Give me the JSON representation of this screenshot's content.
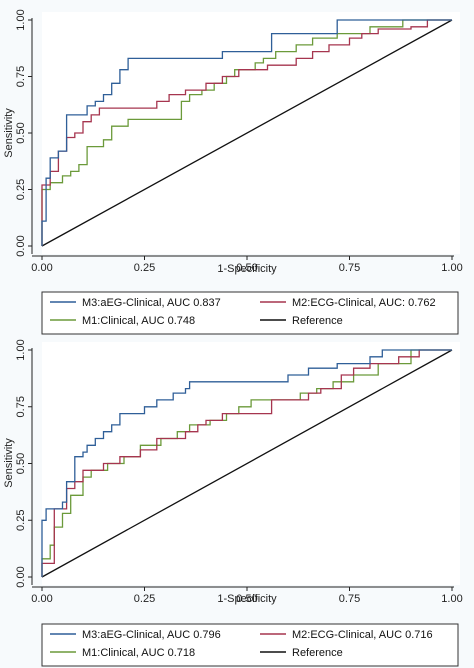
{
  "chart_data": [
    {
      "type": "line",
      "xlabel": "1-Specificity",
      "ylabel": "Sensitivity",
      "xlim": [
        0,
        1
      ],
      "ylim": [
        0,
        1
      ],
      "xticks": [
        "0.00",
        "0.25",
        "0.50",
        "0.75",
        "1.00"
      ],
      "yticks": [
        "0.00",
        "0.25",
        "0.50",
        "0.75",
        "1.00"
      ],
      "grid": false,
      "legend_position": "bottom",
      "series": [
        {
          "name": "M3:aEG-Clinical, AUC 0.837",
          "color": "#2f5f98",
          "x": [
            0,
            0,
            0.01,
            0.01,
            0.02,
            0.02,
            0.04,
            0.04,
            0.06,
            0.06,
            0.11,
            0.11,
            0.13,
            0.13,
            0.15,
            0.15,
            0.17,
            0.17,
            0.19,
            0.19,
            0.21,
            0.21,
            0.23,
            0.23,
            0.26,
            0.26,
            0.44,
            0.44,
            0.51,
            0.51,
            0.56,
            0.56,
            0.72,
            0.72,
            1.0
          ],
          "y": [
            0,
            0.11,
            0.11,
            0.3,
            0.3,
            0.39,
            0.39,
            0.42,
            0.42,
            0.58,
            0.58,
            0.62,
            0.62,
            0.64,
            0.64,
            0.67,
            0.67,
            0.72,
            0.72,
            0.78,
            0.78,
            0.83,
            0.83,
            0.83,
            0.83,
            0.83,
            0.83,
            0.86,
            0.86,
            0.86,
            0.86,
            0.94,
            0.94,
            1.0,
            1.0
          ]
        },
        {
          "name": "M2:ECG-Clinical, AUC: 0.762",
          "color": "#a6354f",
          "x": [
            0,
            0,
            0.02,
            0.02,
            0.04,
            0.04,
            0.06,
            0.06,
            0.08,
            0.08,
            0.1,
            0.1,
            0.12,
            0.12,
            0.14,
            0.14,
            0.28,
            0.28,
            0.31,
            0.31,
            0.35,
            0.35,
            0.4,
            0.4,
            0.44,
            0.44,
            0.48,
            0.48,
            0.55,
            0.55,
            0.62,
            0.62,
            0.66,
            0.66,
            0.7,
            0.7,
            0.75,
            0.75,
            0.78,
            0.78,
            0.82,
            0.82,
            0.9,
            0.9,
            0.94,
            0.94,
            1.0
          ],
          "y": [
            0,
            0.27,
            0.27,
            0.33,
            0.33,
            0.42,
            0.42,
            0.48,
            0.48,
            0.5,
            0.5,
            0.55,
            0.55,
            0.58,
            0.58,
            0.61,
            0.61,
            0.64,
            0.64,
            0.67,
            0.67,
            0.69,
            0.69,
            0.72,
            0.72,
            0.75,
            0.75,
            0.78,
            0.78,
            0.8,
            0.8,
            0.83,
            0.83,
            0.86,
            0.86,
            0.89,
            0.89,
            0.92,
            0.92,
            0.94,
            0.94,
            0.96,
            0.96,
            0.97,
            0.97,
            1.0,
            1.0
          ]
        },
        {
          "name": "M1:Clinical, AUC 0.748",
          "color": "#6b9a3a",
          "x": [
            0,
            0,
            0.02,
            0.02,
            0.05,
            0.05,
            0.07,
            0.07,
            0.09,
            0.09,
            0.11,
            0.11,
            0.15,
            0.15,
            0.17,
            0.17,
            0.21,
            0.21,
            0.34,
            0.34,
            0.36,
            0.36,
            0.39,
            0.39,
            0.42,
            0.42,
            0.45,
            0.45,
            0.47,
            0.47,
            0.52,
            0.52,
            0.54,
            0.54,
            0.57,
            0.57,
            0.62,
            0.62,
            0.66,
            0.66,
            0.72,
            0.72,
            0.8,
            0.8,
            0.88,
            0.88,
            1.0
          ],
          "y": [
            0,
            0.25,
            0.25,
            0.28,
            0.28,
            0.31,
            0.31,
            0.33,
            0.33,
            0.36,
            0.36,
            0.44,
            0.44,
            0.47,
            0.47,
            0.53,
            0.53,
            0.56,
            0.56,
            0.64,
            0.64,
            0.67,
            0.67,
            0.69,
            0.69,
            0.72,
            0.72,
            0.75,
            0.75,
            0.78,
            0.78,
            0.81,
            0.81,
            0.83,
            0.83,
            0.86,
            0.86,
            0.89,
            0.89,
            0.92,
            0.92,
            0.94,
            0.94,
            0.97,
            0.97,
            1.0,
            1.0
          ]
        },
        {
          "name": "Reference",
          "color": "#111111",
          "x": [
            0,
            1
          ],
          "y": [
            0,
            1
          ]
        }
      ]
    },
    {
      "type": "line",
      "xlabel": "1-Specificity",
      "ylabel": "Sensitivity",
      "xlim": [
        0,
        1
      ],
      "ylim": [
        0,
        1
      ],
      "xticks": [
        "0.00",
        "0.25",
        "0.50",
        "0.75",
        "1.00"
      ],
      "yticks": [
        "0.00",
        "0.25",
        "0.50",
        "0.75",
        "1.00"
      ],
      "grid": false,
      "legend_position": "bottom",
      "series": [
        {
          "name": "M3:aEG-Clinical, AUC 0.796",
          "color": "#2f5f98",
          "x": [
            0,
            0,
            0.01,
            0.01,
            0.02,
            0.02,
            0.05,
            0.05,
            0.06,
            0.06,
            0.08,
            0.08,
            0.1,
            0.1,
            0.11,
            0.11,
            0.13,
            0.13,
            0.15,
            0.15,
            0.17,
            0.17,
            0.19,
            0.19,
            0.23,
            0.23,
            0.25,
            0.25,
            0.28,
            0.28,
            0.32,
            0.32,
            0.35,
            0.35,
            0.36,
            0.36,
            0.6,
            0.6,
            0.65,
            0.65,
            0.72,
            0.72,
            0.8,
            0.8,
            0.83,
            0.83,
            1.0
          ],
          "y": [
            0,
            0.25,
            0.25,
            0.3,
            0.3,
            0.3,
            0.3,
            0.33,
            0.33,
            0.42,
            0.42,
            0.53,
            0.53,
            0.55,
            0.55,
            0.58,
            0.58,
            0.61,
            0.61,
            0.64,
            0.64,
            0.67,
            0.67,
            0.72,
            0.72,
            0.72,
            0.72,
            0.75,
            0.75,
            0.78,
            0.78,
            0.81,
            0.81,
            0.83,
            0.83,
            0.86,
            0.86,
            0.89,
            0.89,
            0.92,
            0.92,
            0.94,
            0.94,
            0.97,
            0.97,
            1.0,
            1.0
          ]
        },
        {
          "name": "M2:ECG-Clinical, AUC 0.716",
          "color": "#a6354f",
          "x": [
            0,
            0,
            0.03,
            0.03,
            0.06,
            0.06,
            0.08,
            0.08,
            0.1,
            0.1,
            0.15,
            0.15,
            0.19,
            0.19,
            0.24,
            0.24,
            0.28,
            0.28,
            0.35,
            0.35,
            0.38,
            0.38,
            0.4,
            0.4,
            0.44,
            0.44,
            0.56,
            0.56,
            0.65,
            0.65,
            0.68,
            0.68,
            0.73,
            0.73,
            0.76,
            0.76,
            0.8,
            0.8,
            0.87,
            0.87,
            0.92,
            0.92,
            1.0
          ],
          "y": [
            0,
            0.06,
            0.06,
            0.3,
            0.3,
            0.39,
            0.39,
            0.42,
            0.42,
            0.47,
            0.47,
            0.5,
            0.5,
            0.53,
            0.53,
            0.56,
            0.56,
            0.61,
            0.61,
            0.64,
            0.64,
            0.67,
            0.67,
            0.69,
            0.69,
            0.72,
            0.72,
            0.78,
            0.78,
            0.81,
            0.81,
            0.83,
            0.83,
            0.89,
            0.89,
            0.92,
            0.92,
            0.94,
            0.94,
            0.97,
            0.97,
            1.0,
            1.0
          ]
        },
        {
          "name": "M1:Clinical, AUC 0.718",
          "color": "#6b9a3a",
          "x": [
            0,
            0,
            0.02,
            0.02,
            0.03,
            0.03,
            0.05,
            0.05,
            0.07,
            0.07,
            0.1,
            0.1,
            0.12,
            0.12,
            0.16,
            0.16,
            0.2,
            0.2,
            0.24,
            0.24,
            0.29,
            0.29,
            0.33,
            0.33,
            0.36,
            0.36,
            0.41,
            0.41,
            0.45,
            0.45,
            0.48,
            0.48,
            0.51,
            0.51,
            0.63,
            0.63,
            0.67,
            0.67,
            0.71,
            0.71,
            0.76,
            0.76,
            0.82,
            0.82,
            0.9,
            0.9,
            1.0
          ],
          "y": [
            0,
            0.08,
            0.08,
            0.14,
            0.14,
            0.22,
            0.22,
            0.28,
            0.28,
            0.36,
            0.36,
            0.44,
            0.44,
            0.47,
            0.47,
            0.5,
            0.5,
            0.53,
            0.53,
            0.58,
            0.58,
            0.61,
            0.61,
            0.64,
            0.64,
            0.67,
            0.67,
            0.69,
            0.69,
            0.72,
            0.72,
            0.75,
            0.75,
            0.78,
            0.78,
            0.81,
            0.81,
            0.83,
            0.83,
            0.86,
            0.86,
            0.89,
            0.89,
            0.94,
            0.94,
            1.0,
            1.0
          ]
        },
        {
          "name": "Reference",
          "color": "#111111",
          "x": [
            0,
            1
          ],
          "y": [
            0,
            1
          ]
        }
      ]
    }
  ]
}
